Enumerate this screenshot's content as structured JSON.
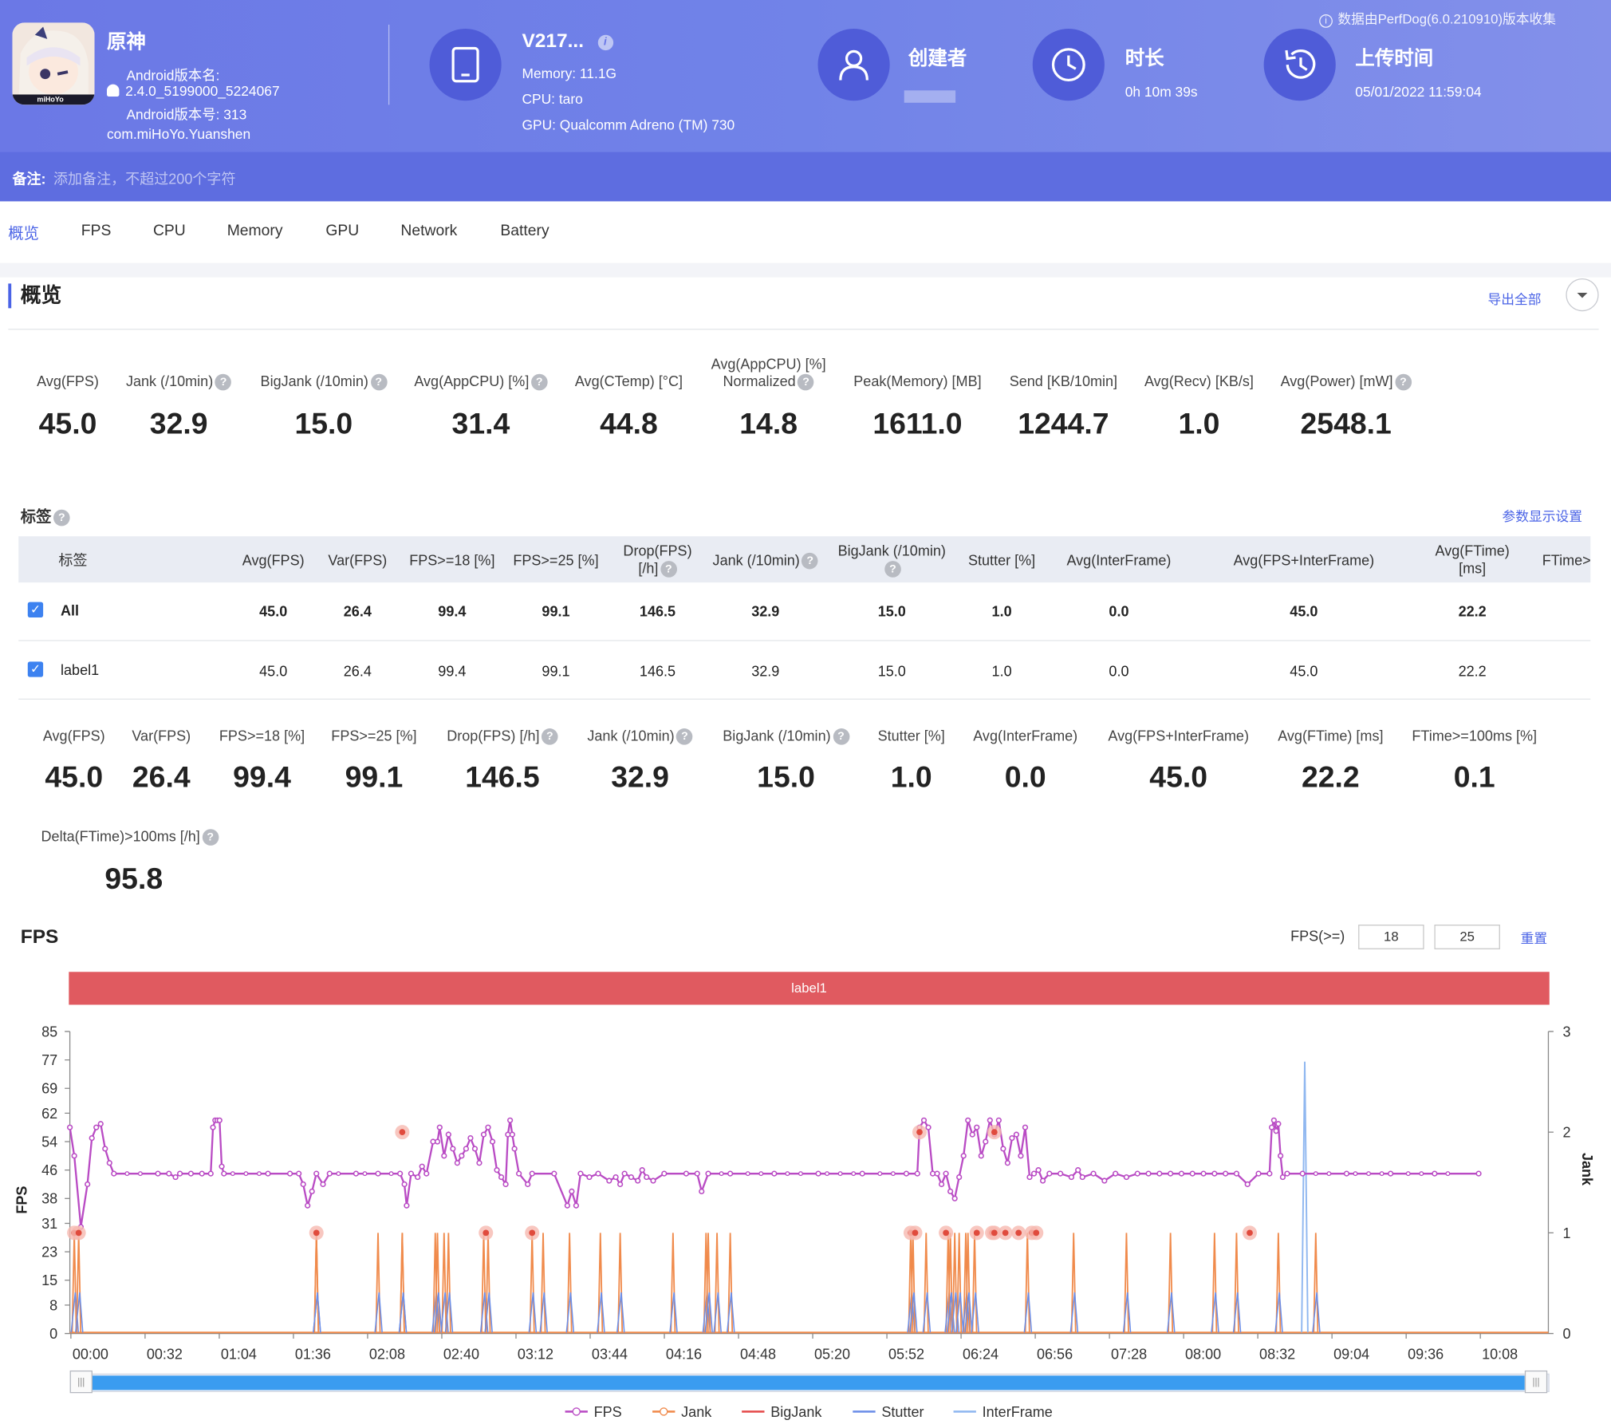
{
  "header": {
    "app_name": "原神",
    "android_version_name_label": "Android版本名:",
    "android_version_name": "2.4.0_5199000_5224067",
    "android_version_code": "Android版本号: 313",
    "package": "com.miHoYo.Yuanshen",
    "icon_caption": "miHoYo",
    "device_name": "V217...",
    "memory": "Memory: 11.1G",
    "cpu": "CPU: taro",
    "gpu": "GPU: Qualcomm Adreno (TM) 730",
    "creator_label": "创建者",
    "duration_label": "时长",
    "duration": "0h 10m 39s",
    "upload_label": "上传时间",
    "upload_time": "05/01/2022 11:59:04",
    "data_source": "数据由PerfDog(6.0.210910)版本收集",
    "note_label": "备注:",
    "note_placeholder": "添加备注，不超过200个字符",
    "colors": {
      "header": "#6b78e6",
      "accent": "#4a63e6"
    }
  },
  "tabs": [
    "概览",
    "FPS",
    "CPU",
    "Memory",
    "GPU",
    "Network",
    "Battery"
  ],
  "overview": {
    "title": "概览",
    "export_all": "导出全部",
    "metrics": [
      {
        "label": "Avg(FPS)",
        "value": "45.0",
        "help": false
      },
      {
        "label": "Jank (/10min)",
        "value": "32.9",
        "help": true
      },
      {
        "label": "BigJank (/10min)",
        "value": "15.0",
        "help": true
      },
      {
        "label": "Avg(AppCPU) [%]",
        "value": "31.4",
        "help": true
      },
      {
        "label": "Avg(CTemp) [°C]",
        "value": "44.8",
        "help": false
      },
      {
        "label": "Avg(AppCPU) [%]",
        "label2": "Normalized",
        "value": "14.8",
        "help": true
      },
      {
        "label": "Peak(Memory) [MB]",
        "value": "1611.0",
        "help": false
      },
      {
        "label": "Send [KB/10min]",
        "value": "1244.7",
        "help": false
      },
      {
        "label": "Avg(Recv) [KB/s]",
        "value": "1.0",
        "help": false
      },
      {
        "label": "Avg(Power) [mW]",
        "value": "2548.1",
        "help": true
      }
    ]
  },
  "labels_section": {
    "title": "标签",
    "settings": "参数显示设置",
    "columns": [
      "标签",
      "Avg(FPS)",
      "Var(FPS)",
      "FPS>=18 [%]",
      "FPS>=25 [%]",
      "Drop(FPS)",
      "Jank (/10min)",
      "BigJank (/10min)",
      "Stutter [%]",
      "Avg(InterFrame)",
      "Avg(FPS+InterFrame)",
      "Avg(FTime)",
      "FTime>"
    ],
    "column_line2": {
      "drop": "[/h]",
      "ftime": "[ms]"
    },
    "rows": [
      {
        "name": "All",
        "values": [
          "45.0",
          "26.4",
          "99.4",
          "99.1",
          "146.5",
          "32.9",
          "15.0",
          "1.0",
          "0.0",
          "45.0",
          "22.2"
        ]
      },
      {
        "name": "label1",
        "values": [
          "45.0",
          "26.4",
          "99.4",
          "99.1",
          "146.5",
          "32.9",
          "15.0",
          "1.0",
          "0.0",
          "45.0",
          "22.2"
        ]
      }
    ]
  },
  "summary": [
    {
      "label": "Avg(FPS)",
      "value": "45.0",
      "help": false
    },
    {
      "label": "Var(FPS)",
      "value": "26.4",
      "help": false
    },
    {
      "label": "FPS>=18 [%]",
      "value": "99.4",
      "help": false
    },
    {
      "label": "FPS>=25 [%]",
      "value": "99.1",
      "help": false
    },
    {
      "label": "Drop(FPS) [/h]",
      "value": "146.5",
      "help": true
    },
    {
      "label": "Jank (/10min)",
      "value": "32.9",
      "help": true
    },
    {
      "label": "BigJank (/10min)",
      "value": "15.0",
      "help": true
    },
    {
      "label": "Stutter [%]",
      "value": "1.0",
      "help": false
    },
    {
      "label": "Avg(InterFrame)",
      "value": "0.0",
      "help": false
    },
    {
      "label": "Avg(FPS+InterFrame)",
      "value": "45.0",
      "help": false
    },
    {
      "label": "Avg(FTime) [ms]",
      "value": "22.2",
      "help": false
    },
    {
      "label": "FTime>=100ms [%]",
      "value": "0.1",
      "help": false
    }
  ],
  "delta": {
    "label": "Delta(FTime)>100ms [/h]",
    "value": "95.8"
  },
  "fps_section": {
    "title": "FPS",
    "threshold_label": "FPS(>=)",
    "threshold1": "18",
    "threshold2": "25",
    "reset": "重置",
    "band_label": "label1"
  },
  "chart_data": {
    "type": "line",
    "y_ticks": [
      "85",
      "77",
      "69",
      "62",
      "54",
      "46",
      "38",
      "31",
      "23",
      "15",
      "8",
      "0"
    ],
    "y2_ticks": [
      "3",
      "2",
      "1",
      "0"
    ],
    "x_ticks": [
      "00:00",
      "00:32",
      "01:04",
      "01:36",
      "02:08",
      "02:40",
      "03:12",
      "03:44",
      "04:16",
      "04:48",
      "05:20",
      "05:52",
      "06:24",
      "06:56",
      "07:28",
      "08:00",
      "08:32",
      "09:04",
      "09:36",
      "10:08"
    ],
    "ylabel": "FPS",
    "y2label": "Jank",
    "ylim": [
      0,
      85
    ],
    "y2lim": [
      0,
      3
    ],
    "xlim_seconds": [
      0,
      639
    ],
    "fps_baseline": 45,
    "fps_points": [
      [
        0,
        58
      ],
      [
        2,
        50
      ],
      [
        5,
        30
      ],
      [
        8,
        42
      ],
      [
        10,
        55
      ],
      [
        12,
        58
      ],
      [
        14,
        59
      ],
      [
        16,
        52
      ],
      [
        18,
        48
      ],
      [
        20,
        45
      ],
      [
        40,
        45
      ],
      [
        45,
        45
      ],
      [
        48,
        44
      ],
      [
        50,
        45
      ],
      [
        55,
        45
      ],
      [
        60,
        45
      ],
      [
        64,
        45
      ],
      [
        65,
        58
      ],
      [
        66,
        60
      ],
      [
        67,
        60
      ],
      [
        68,
        60
      ],
      [
        69,
        47
      ],
      [
        70,
        45
      ],
      [
        90,
        45
      ],
      [
        100,
        45
      ],
      [
        104,
        45
      ],
      [
        106,
        42
      ],
      [
        108,
        36
      ],
      [
        110,
        40
      ],
      [
        112,
        45
      ],
      [
        115,
        42
      ],
      [
        118,
        45
      ],
      [
        130,
        45
      ],
      [
        140,
        45
      ],
      [
        150,
        45
      ],
      [
        152,
        42
      ],
      [
        153,
        36
      ],
      [
        155,
        45
      ],
      [
        158,
        44
      ],
      [
        160,
        47
      ],
      [
        162,
        45
      ],
      [
        165,
        54
      ],
      [
        167,
        54
      ],
      [
        168,
        58
      ],
      [
        170,
        50
      ],
      [
        172,
        56
      ],
      [
        174,
        52
      ],
      [
        176,
        48
      ],
      [
        178,
        50
      ],
      [
        180,
        52
      ],
      [
        182,
        55
      ],
      [
        184,
        52
      ],
      [
        186,
        48
      ],
      [
        188,
        56
      ],
      [
        190,
        58
      ],
      [
        192,
        54
      ],
      [
        194,
        46
      ],
      [
        196,
        44
      ],
      [
        198,
        42
      ],
      [
        199,
        56
      ],
      [
        200,
        60
      ],
      [
        201,
        56
      ],
      [
        202,
        52
      ],
      [
        204,
        45
      ],
      [
        208,
        42
      ],
      [
        210,
        45
      ],
      [
        220,
        45
      ],
      [
        226,
        36
      ],
      [
        228,
        40
      ],
      [
        230,
        36
      ],
      [
        232,
        45
      ],
      [
        236,
        44
      ],
      [
        240,
        45
      ],
      [
        245,
        43
      ],
      [
        248,
        44
      ],
      [
        250,
        42
      ],
      [
        252,
        45
      ],
      [
        255,
        44
      ],
      [
        258,
        43
      ],
      [
        260,
        46
      ],
      [
        262,
        44
      ],
      [
        265,
        43
      ],
      [
        270,
        45
      ],
      [
        280,
        45
      ],
      [
        285,
        45
      ],
      [
        287,
        40
      ],
      [
        290,
        45
      ],
      [
        300,
        45
      ],
      [
        320,
        45
      ],
      [
        340,
        45
      ],
      [
        360,
        45
      ],
      [
        380,
        45
      ],
      [
        400,
        45
      ],
      [
        420,
        45
      ],
      [
        450,
        45
      ],
      [
        480,
        45
      ],
      [
        500,
        45
      ],
      [
        540,
        45
      ],
      [
        545,
        45
      ],
      [
        546,
        58
      ],
      [
        547,
        60
      ],
      [
        548,
        57
      ],
      [
        549,
        59
      ],
      [
        550,
        50
      ],
      [
        551,
        44
      ],
      [
        553,
        45
      ],
      [
        560,
        45
      ],
      [
        580,
        45
      ],
      [
        600,
        45
      ],
      [
        620,
        45
      ],
      [
        640,
        45
      ]
    ],
    "fps_points2": [
      [
        0,
        58
      ],
      [
        10,
        58
      ],
      [
        20,
        45
      ],
      [
        30,
        45
      ],
      [
        35,
        45
      ],
      [
        40,
        45
      ],
      [
        60,
        45
      ],
      [
        80,
        45
      ],
      [
        100,
        45
      ],
      [
        120,
        45
      ],
      [
        140,
        45
      ],
      [
        160,
        45
      ],
      [
        180,
        45
      ],
      [
        200,
        45
      ],
      [
        220,
        45
      ],
      [
        240,
        45
      ],
      [
        260,
        45
      ],
      [
        280,
        45
      ],
      [
        300,
        45
      ],
      [
        320,
        45
      ],
      [
        340,
        45
      ],
      [
        360,
        45
      ],
      [
        380,
        45
      ],
      [
        385,
        45
      ],
      [
        386,
        58
      ],
      [
        388,
        60
      ],
      [
        390,
        58
      ],
      [
        392,
        45
      ],
      [
        394,
        45
      ],
      [
        396,
        42
      ],
      [
        398,
        45
      ],
      [
        400,
        40
      ],
      [
        402,
        38
      ],
      [
        404,
        44
      ],
      [
        406,
        50
      ],
      [
        408,
        60
      ],
      [
        410,
        56
      ],
      [
        412,
        58
      ],
      [
        414,
        50
      ],
      [
        416,
        54
      ],
      [
        418,
        60
      ],
      [
        420,
        56
      ],
      [
        422,
        60
      ],
      [
        424,
        52
      ],
      [
        426,
        48
      ],
      [
        428,
        55
      ],
      [
        430,
        56
      ],
      [
        432,
        50
      ],
      [
        434,
        58
      ],
      [
        436,
        44
      ],
      [
        438,
        45
      ],
      [
        440,
        46
      ],
      [
        442,
        43
      ],
      [
        445,
        45
      ],
      [
        450,
        45
      ],
      [
        455,
        44
      ],
      [
        458,
        46
      ],
      [
        460,
        44
      ],
      [
        465,
        45
      ],
      [
        470,
        43
      ],
      [
        475,
        45
      ],
      [
        480,
        44
      ],
      [
        485,
        45
      ],
      [
        490,
        45
      ],
      [
        495,
        45
      ],
      [
        500,
        45
      ],
      [
        505,
        45
      ],
      [
        510,
        45
      ],
      [
        515,
        45
      ],
      [
        520,
        45
      ],
      [
        525,
        45
      ],
      [
        530,
        45
      ],
      [
        535,
        42
      ],
      [
        538,
        40
      ],
      [
        540,
        44
      ],
      [
        542,
        48
      ],
      [
        544,
        52
      ],
      [
        546,
        54
      ],
      [
        548,
        48
      ],
      [
        550,
        52
      ],
      [
        552,
        46
      ],
      [
        554,
        45
      ],
      [
        560,
        45
      ],
      [
        580,
        45
      ],
      [
        600,
        45
      ],
      [
        620,
        45
      ],
      [
        639,
        45
      ]
    ],
    "jank_spikes": [
      2,
      4,
      112,
      112,
      140,
      151,
      166,
      167,
      170,
      151,
      172,
      188,
      190,
      210,
      215,
      227,
      241,
      250,
      274,
      289,
      290,
      294,
      300,
      382,
      383,
      389,
      399,
      400,
      402,
      404,
      407,
      408,
      411,
      435,
      456,
      480,
      500,
      520,
      530,
      549,
      566
    ],
    "jank_markers_y1": [
      2,
      4,
      112,
      189,
      210,
      382,
      384,
      398,
      412,
      419,
      420,
      425,
      431,
      437,
      439,
      536
    ],
    "jank_markers_y2": [
      151,
      386,
      420
    ],
    "stutter_spike": 561,
    "series_legend": [
      "FPS",
      "Jank",
      "BigJank",
      "Stutter",
      "InterFrame"
    ],
    "series_colors": {
      "FPS": "#b94bc4",
      "Jank": "#f08a4b",
      "BigJank": "#e54b4b",
      "Stutter": "#6b8ee8",
      "InterFrame": "#8fb7f0"
    }
  }
}
